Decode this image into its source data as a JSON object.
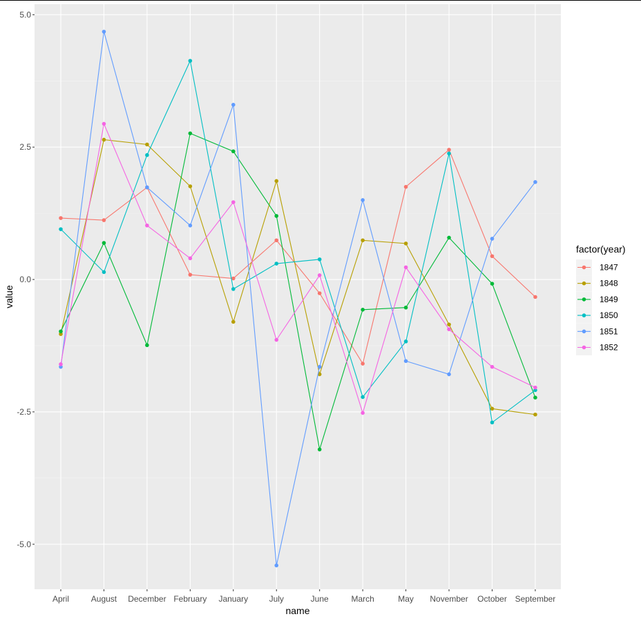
{
  "chart_data": {
    "type": "line",
    "xlabel": "name",
    "ylabel": "value",
    "categories": [
      "April",
      "August",
      "December",
      "February",
      "January",
      "July",
      "June",
      "March",
      "May",
      "November",
      "October",
      "September"
    ],
    "ylim": [
      -5.85,
      5.2
    ],
    "yticks": [
      -5.0,
      -2.5,
      0.0,
      2.5,
      5.0
    ],
    "ytick_labels": [
      "-5.0",
      "-2.5",
      "0.0",
      "2.5",
      "5.0"
    ],
    "grid": true,
    "points": true,
    "legend": {
      "title": "factor(year)",
      "placement": "right"
    },
    "series": [
      {
        "name": "1847",
        "color": "#F8766D",
        "values": [
          1.16,
          1.12,
          1.74,
          0.09,
          0.02,
          0.74,
          -0.26,
          -1.59,
          1.75,
          2.45,
          0.44,
          -0.33
        ]
      },
      {
        "name": "1848",
        "color": "#B79F00",
        "values": [
          -1.03,
          2.64,
          2.55,
          1.76,
          -0.8,
          1.86,
          -1.79,
          0.74,
          0.68,
          -0.85,
          -2.44,
          -2.55
        ]
      },
      {
        "name": "1849",
        "color": "#00BA38",
        "values": [
          -0.98,
          0.69,
          -1.24,
          2.76,
          2.42,
          1.2,
          -3.21,
          -0.57,
          -0.53,
          0.79,
          -0.08,
          -2.23
        ]
      },
      {
        "name": "1850",
        "color": "#00BFC4",
        "values": [
          0.95,
          0.14,
          2.35,
          4.13,
          -0.18,
          0.3,
          0.38,
          -2.22,
          -1.17,
          2.38,
          -2.7,
          -2.09
        ]
      },
      {
        "name": "1851",
        "color": "#619CFF",
        "values": [
          -1.65,
          4.68,
          1.74,
          1.02,
          3.3,
          -5.4,
          -1.65,
          1.5,
          -1.54,
          -1.79,
          0.77,
          1.84
        ]
      },
      {
        "name": "1852",
        "color": "#F564E3",
        "values": [
          -1.6,
          2.94,
          1.02,
          0.4,
          1.46,
          -1.14,
          0.08,
          -2.52,
          0.23,
          -0.94,
          -1.65,
          -2.04
        ]
      }
    ]
  }
}
